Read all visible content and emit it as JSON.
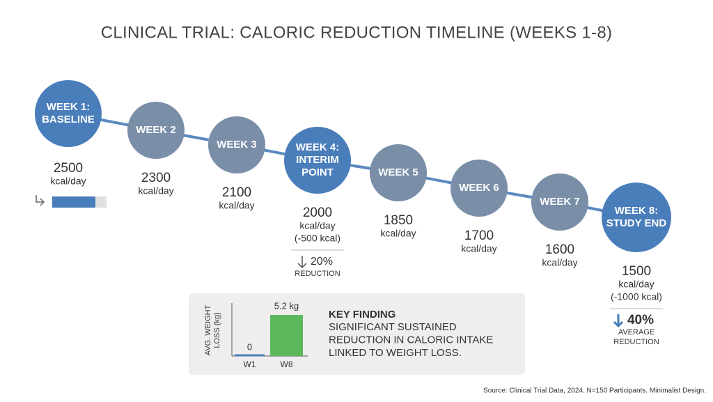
{
  "title": "CLINICAL TRIAL: CALORIC REDUCTION TIMELINE (WEEKS 1-8)",
  "nodes": [
    {
      "label": [
        "WEEK 1:",
        "BASELINE"
      ],
      "value": 2500,
      "unit": "kcal/day"
    },
    {
      "label": [
        "WEEK 2"
      ],
      "value": 2300,
      "unit": "kcal/day"
    },
    {
      "label": [
        "WEEK 3"
      ],
      "value": 2100,
      "unit": "kcal/day"
    },
    {
      "label": [
        "WEEK 4:",
        "INTERIM",
        "POINT"
      ],
      "value": 2000,
      "unit": "kcal/day",
      "note": "(-500 kcal)",
      "change": "20%",
      "change_label": [
        "REDUCTION"
      ]
    },
    {
      "label": [
        "WEEK 5"
      ],
      "value": 1850,
      "unit": "kcal/day"
    },
    {
      "label": [
        "WEEK 6"
      ],
      "value": 1700,
      "unit": "kcal/day"
    },
    {
      "label": [
        "WEEK 7"
      ],
      "value": 1600,
      "unit": "kcal/day"
    },
    {
      "label": [
        "WEEK 8:",
        "STUDY END"
      ],
      "value": 1500,
      "unit": "kcal/day",
      "note": "(-1000 kcal)",
      "change": "40%",
      "change_label": [
        "AVERAGE",
        "REDUCTION"
      ]
    }
  ],
  "chart_data": {
    "type": "bar",
    "y_label": [
      "AVG. WEIGHT",
      "LOSS (kg)"
    ],
    "categories": [
      "W1",
      "W8"
    ],
    "values": [
      0,
      5.2
    ],
    "value_labels": [
      "0",
      "5.2 kg"
    ],
    "colors": [
      "#4a7ebb",
      "#5cb85c"
    ],
    "ylim": [
      0,
      6
    ]
  },
  "key_finding": {
    "title": "KEY FINDING",
    "lines": [
      "SIGNIFICANT SUSTAINED",
      "REDUCTION IN CALORIC INTAKE",
      "LINKED TO WEIGHT LOSS."
    ]
  },
  "source": "Source: Clinical Trial Data, 2024. N=150 Participants. Minimalist Design."
}
